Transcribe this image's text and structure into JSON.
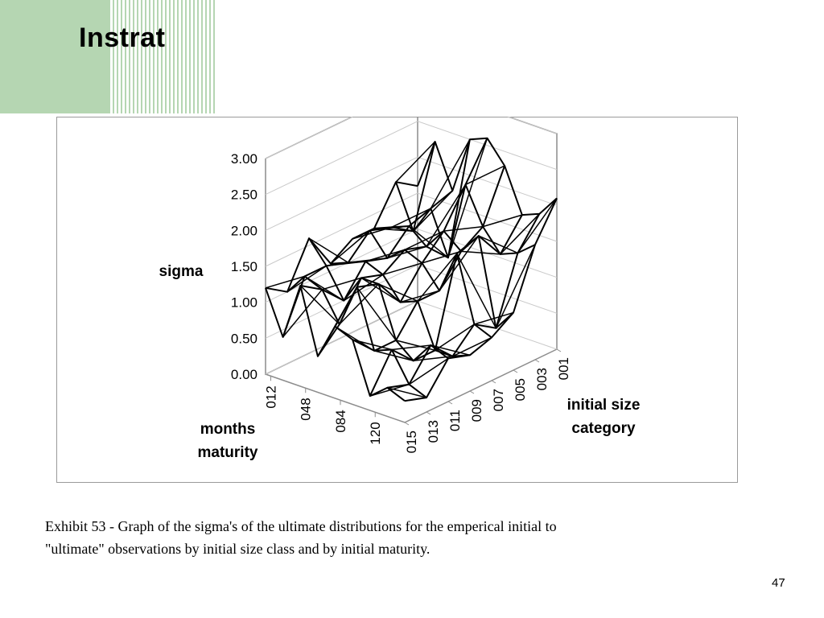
{
  "slide": {
    "title": "Instrat",
    "caption": "Exhibit 53 - Graph of  the sigma's of the ultimate distributions for the emperical initial to \"ultimate\" observations by initial size class and by initial maturity.",
    "page_number": "47",
    "colors": {
      "accent_green": "#b5d6b2",
      "frame": "#9a9a9a",
      "wire": "#000000"
    }
  },
  "chart_data": {
    "type": "surface-wireframe-3d",
    "title": "",
    "zlabel": "sigma",
    "xlabel": "months maturity",
    "ylabel": "initial size category",
    "zlim": [
      0,
      3
    ],
    "z_ticks": [
      "0.00",
      "0.50",
      "1.00",
      "1.50",
      "2.00",
      "2.50",
      "3.00"
    ],
    "x_tick_labels": [
      "012",
      "048",
      "084",
      "120"
    ],
    "y_tick_labels": [
      "015",
      "013",
      "011",
      "009",
      "007",
      "005",
      "003",
      "001"
    ],
    "gridlines": true,
    "grid": [
      [
        1.2,
        0.6,
        1.4,
        0.5,
        1.0,
        0.9,
        0.2,
        0.4,
        0.3
      ],
      [
        1.0,
        1.3,
        1.2,
        0.8,
        1.4,
        0.6,
        0.7,
        0.3,
        0.2
      ],
      [
        1.6,
        1.3,
        0.9,
        1.3,
        1.3,
        0.6,
        0.4,
        0.7,
        0.6
      ],
      [
        1.1,
        1.2,
        1.3,
        1.2,
        0.9,
        1.0,
        0.4,
        0.4,
        0.5
      ],
      [
        1.3,
        1.5,
        1.2,
        1.4,
        1.3,
        1.0,
        1.6,
        0.7,
        0.6
      ],
      [
        1.3,
        1.4,
        1.5,
        1.3,
        1.6,
        1.4,
        1.7,
        0.5,
        0.8
      ],
      [
        1.8,
        1.2,
        1.6,
        1.0,
        2.1,
        1.6,
        1.3,
        1.4,
        1.6
      ],
      [
        1.6,
        2.3,
        1.7,
        2.5,
        2.6,
        2.3,
        1.7,
        1.8,
        2.1
      ]
    ]
  }
}
